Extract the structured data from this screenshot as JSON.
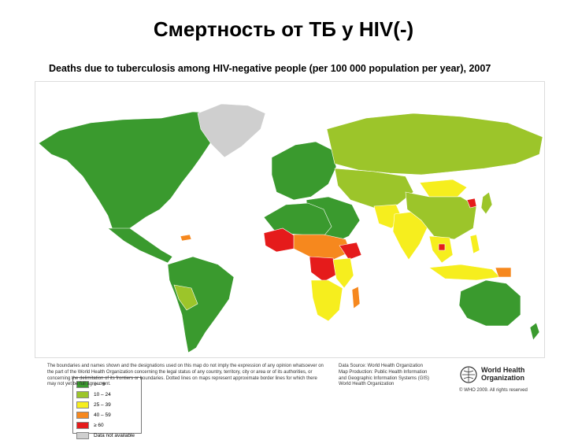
{
  "slide": {
    "title": "Смертность от ТБ у HIV(-)"
  },
  "map": {
    "heading": "Deaths due to tuberculosis among HIV-negative people (per 100 000 population per year), 2007",
    "legend": [
      {
        "label": "0 – 9",
        "color": "#3a9a2e"
      },
      {
        "label": "10 – 24",
        "color": "#9cc52a"
      },
      {
        "label": "25 – 39",
        "color": "#f6ee1e"
      },
      {
        "label": "40 – 59",
        "color": "#f6881e"
      },
      {
        "label": "≥ 60",
        "color": "#e51b1b"
      },
      {
        "label": "Data not available",
        "color": "#cfcfcf"
      }
    ]
  },
  "footer": {
    "disclaimer": "The boundaries and names shown and the designations used on this map do not imply the expression of any opinion whatsoever on the part of the World Health Organization concerning the legal status of any country, territory, city or area or of its authorities, or concerning the delimitation of its frontiers or boundaries. Dotted lines on maps represent approximate border lines for which there may not yet be full agreement.",
    "source": "Data Source: World Health Organization Map Production: Public Health Information and Geographic Information Systems (GIS) World Health Organization",
    "org_name_line1": "World Health",
    "org_name_line2": "Organization",
    "copyright": "© WHO 2009. All rights reserved"
  }
}
